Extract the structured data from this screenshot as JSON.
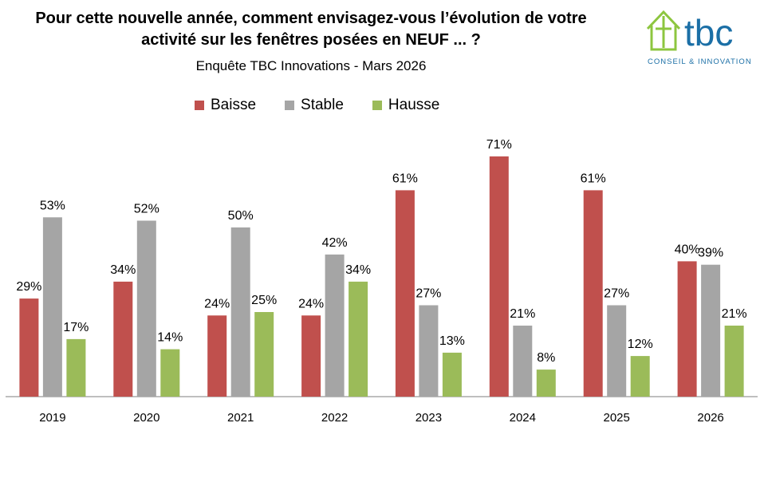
{
  "title_line1": "Pour cette nouvelle année, comment envisagez-vous l’évolution de votre",
  "title_line2": "activité sur les fenêtres posées en NEUF ... ?",
  "subtitle": "Enquête TBC Innovations - Mars 2026",
  "logo": {
    "text": "tbc",
    "tagline": "CONSEIL & INNOVATION",
    "icon": "house-logo-icon",
    "color": "#1b6fa6",
    "accent": "#8dc63f"
  },
  "chart_data": {
    "type": "bar",
    "categories": [
      "2019",
      "2020",
      "2021",
      "2022",
      "2023",
      "2024",
      "2025",
      "2026"
    ],
    "series": [
      {
        "name": "Baisse",
        "color": "#c0504d",
        "values": [
          29,
          34,
          24,
          24,
          61,
          71,
          61,
          40
        ]
      },
      {
        "name": "Stable",
        "color": "#a5a5a5",
        "values": [
          53,
          52,
          50,
          42,
          27,
          21,
          27,
          39
        ]
      },
      {
        "name": "Hausse",
        "color": "#9bbb59",
        "values": [
          17,
          14,
          25,
          34,
          13,
          8,
          12,
          21
        ]
      }
    ],
    "value_suffix": "%",
    "ylim": [
      0,
      75
    ],
    "grid": false,
    "legend": "top-center"
  }
}
